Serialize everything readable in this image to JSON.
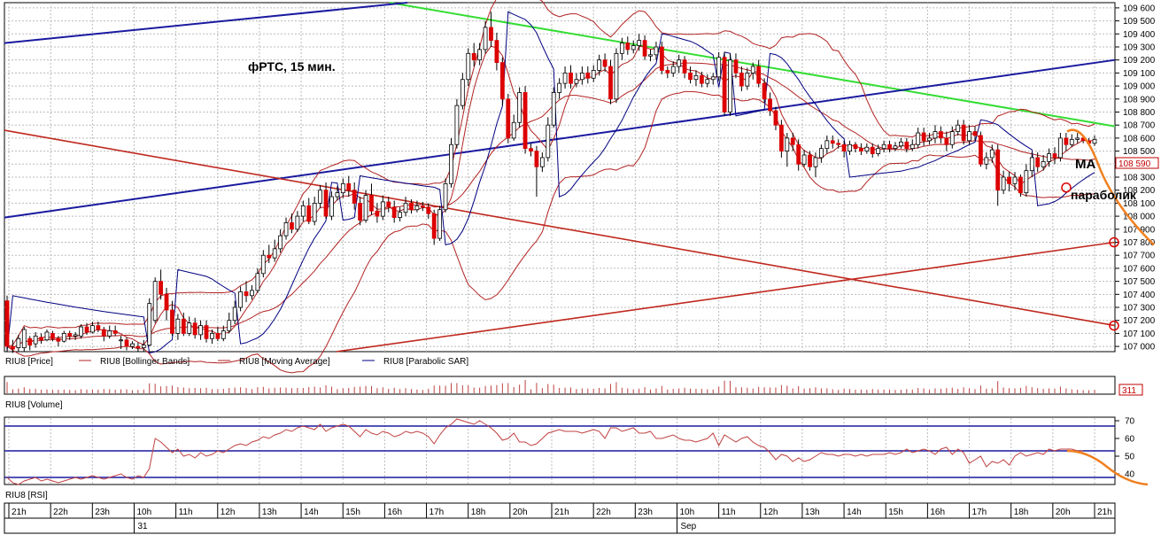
{
  "chart_data": {
    "type": "candlestick",
    "title": "фРТС, 15 мин.",
    "price_axis": {
      "ticks": [
        "109 600",
        "109 500",
        "109 400",
        "109 300",
        "109 200",
        "109 100",
        "109 000",
        "108 900",
        "108 800",
        "108 700",
        "108 600",
        "108 500",
        "108 400",
        "108 300",
        "108 200",
        "108 100",
        "108 000",
        "107 900",
        "107 800",
        "107 700",
        "107 600",
        "107 500",
        "107 400",
        "107 300",
        "107 200",
        "107 100",
        "107 000"
      ],
      "current_price_label": "108 590",
      "ylim": [
        106960,
        109640
      ]
    },
    "legend": [
      {
        "name": "RIU8 [Price]",
        "color": "#000000"
      },
      {
        "name": "RIU8 [Bollinger Bands]",
        "color": "#b22222"
      },
      {
        "name": "RIU8 [Moving Average]",
        "color": "#b22222"
      },
      {
        "name": "RIU8 [Parabolic SAR]",
        "color": "#000080"
      }
    ],
    "candles": [
      [
        107350,
        107000,
        107390,
        106960
      ],
      [
        107000,
        106980,
        107050,
        106950
      ],
      [
        106990,
        107060,
        107090,
        106960
      ],
      [
        106990,
        107130,
        107150,
        106960
      ],
      [
        107060,
        107010,
        107080,
        106970
      ],
      [
        107020,
        107080,
        107110,
        106990
      ],
      [
        107070,
        107050,
        107100,
        107020
      ],
      [
        107050,
        107110,
        107130,
        107040
      ],
      [
        107100,
        107060,
        107120,
        107040
      ],
      [
        107060,
        107040,
        107080,
        107000
      ],
      [
        107040,
        107100,
        107120,
        107030
      ],
      [
        107100,
        107080,
        107120,
        107050
      ],
      [
        107080,
        107090,
        107110,
        107050
      ],
      [
        107080,
        107150,
        107170,
        107060
      ],
      [
        107150,
        107110,
        107180,
        107090
      ],
      [
        107110,
        107160,
        107190,
        107100
      ],
      [
        107160,
        107130,
        107190,
        107110
      ],
      [
        107130,
        107080,
        107150,
        107040
      ],
      [
        107080,
        107120,
        107160,
        107060
      ],
      [
        107120,
        107100,
        107160,
        107080
      ],
      [
        107050,
        107050,
        107080,
        106980
      ],
      [
        107050,
        107000,
        107070,
        106970
      ],
      [
        107000,
        107020,
        107040,
        106980
      ],
      [
        107000,
        106990,
        107030,
        106960
      ],
      [
        106990,
        107010,
        107050,
        106960
      ],
      [
        107010,
        107330,
        107370,
        107000
      ],
      [
        107200,
        107500,
        107530,
        107180
      ],
      [
        107500,
        107400,
        107590,
        107360
      ],
      [
        107400,
        107280,
        107450,
        107200
      ],
      [
        107280,
        107100,
        107350,
        107080
      ],
      [
        107100,
        107210,
        107250,
        107050
      ],
      [
        107210,
        107100,
        107260,
        107080
      ],
      [
        107100,
        107180,
        107230,
        107080
      ],
      [
        107180,
        107090,
        107220,
        107060
      ],
      [
        107090,
        107160,
        107200,
        107050
      ],
      [
        107160,
        107060,
        107200,
        107030
      ],
      [
        107060,
        107100,
        107130,
        107020
      ],
      [
        107100,
        107060,
        107150,
        107040
      ],
      [
        107060,
        107120,
        107160,
        107040
      ],
      [
        107120,
        107200,
        107260,
        107100
      ],
      [
        107200,
        107300,
        107350,
        107170
      ],
      [
        107300,
        107420,
        107460,
        107270
      ],
      [
        107420,
        107390,
        107500,
        107340
      ],
      [
        107390,
        107430,
        107470,
        107360
      ],
      [
        107430,
        107560,
        107600,
        107410
      ],
      [
        107560,
        107700,
        107740,
        107530
      ],
      [
        107700,
        107680,
        107780,
        107640
      ],
      [
        107680,
        107750,
        107820,
        107650
      ],
      [
        107750,
        107850,
        107900,
        107720
      ],
      [
        107850,
        107950,
        107990,
        107820
      ],
      [
        107950,
        107900,
        108020,
        107870
      ],
      [
        107900,
        108000,
        108040,
        107880
      ],
      [
        108000,
        108080,
        108120,
        107960
      ],
      [
        108080,
        107960,
        108140,
        107940
      ],
      [
        107960,
        108100,
        108150,
        107930
      ],
      [
        108100,
        108200,
        108240,
        108060
      ],
      [
        108200,
        108000,
        108260,
        107980
      ],
      [
        108000,
        108150,
        108190,
        107970
      ],
      [
        108150,
        108180,
        108230,
        108120
      ],
      [
        108180,
        108250,
        108290,
        108140
      ],
      [
        108250,
        108200,
        108310,
        108150
      ],
      [
        108200,
        108100,
        108260,
        108050
      ],
      [
        108100,
        107970,
        108150,
        107930
      ],
      [
        107970,
        108160,
        108200,
        107950
      ],
      [
        108160,
        108040,
        108250,
        108010
      ],
      [
        108040,
        108000,
        108100,
        107950
      ],
      [
        108000,
        108110,
        108160,
        107970
      ],
      [
        108110,
        108070,
        108150,
        108030
      ],
      [
        108070,
        107990,
        108120,
        107950
      ],
      [
        107990,
        108030,
        108070,
        107960
      ],
      [
        108030,
        108100,
        108150,
        108000
      ],
      [
        108100,
        108050,
        108130,
        108020
      ],
      [
        108050,
        108080,
        108120,
        108030
      ],
      [
        108080,
        108070,
        108110,
        108040
      ],
      [
        108070,
        108020,
        108100,
        107980
      ],
      [
        108020,
        107830,
        108050,
        107780
      ],
      [
        107830,
        108050,
        108080,
        107810
      ],
      [
        108050,
        108250,
        108290,
        108030
      ],
      [
        108250,
        108550,
        108600,
        108220
      ],
      [
        108550,
        108850,
        108900,
        108520
      ],
      [
        108850,
        109050,
        109100,
        108820
      ],
      [
        109050,
        109250,
        109290,
        109000
      ],
      [
        109250,
        109200,
        109330,
        109150
      ],
      [
        109200,
        109280,
        109330,
        109160
      ],
      [
        109280,
        109450,
        109500,
        109250
      ],
      [
        109450,
        109350,
        109570,
        109300
      ],
      [
        109350,
        109180,
        109410,
        109120
      ],
      [
        109180,
        108900,
        109220,
        108850
      ],
      [
        108900,
        108600,
        108940,
        108560
      ],
      [
        108600,
        108720,
        108780,
        108580
      ],
      [
        108720,
        108950,
        108990,
        108680
      ],
      [
        108950,
        108520,
        109000,
        108480
      ],
      [
        108520,
        108500,
        108560,
        108460
      ],
      [
        108500,
        108380,
        108540,
        108150
      ],
      [
        108380,
        108450,
        108490,
        108340
      ],
      [
        108450,
        108700,
        108760,
        108420
      ],
      [
        108700,
        108950,
        108990,
        108680
      ],
      [
        108950,
        109020,
        109060,
        108900
      ],
      [
        109020,
        109100,
        109150,
        108980
      ],
      [
        109100,
        109020,
        109160,
        108980
      ],
      [
        109020,
        109050,
        109100,
        108990
      ],
      [
        109050,
        109100,
        109150,
        109010
      ],
      [
        109100,
        109060,
        109150,
        109020
      ],
      [
        109060,
        109120,
        109160,
        109030
      ],
      [
        109120,
        109200,
        109240,
        109080
      ],
      [
        109200,
        109150,
        109250,
        109110
      ],
      [
        109150,
        108900,
        109200,
        108860
      ],
      [
        108900,
        109250,
        109290,
        108870
      ],
      [
        109250,
        109330,
        109370,
        109200
      ],
      [
        109330,
        109280,
        109380,
        109240
      ],
      [
        109280,
        109310,
        109350,
        109250
      ],
      [
        109310,
        109350,
        109400,
        109270
      ],
      [
        109350,
        109230,
        109390,
        109200
      ],
      [
        109230,
        109240,
        109280,
        109190
      ],
      [
        109240,
        109300,
        109340,
        109200
      ],
      [
        109300,
        109120,
        109340,
        109090
      ],
      [
        109120,
        109100,
        109150,
        109060
      ],
      [
        109100,
        109150,
        109190,
        109070
      ],
      [
        109150,
        109200,
        109240,
        109100
      ],
      [
        109200,
        109100,
        109230,
        109060
      ],
      [
        109100,
        109050,
        109150,
        109020
      ],
      [
        109050,
        109080,
        109120,
        109000
      ],
      [
        109080,
        109020,
        109110,
        108990
      ],
      [
        109020,
        109050,
        109090,
        108990
      ],
      [
        109050,
        109070,
        109100,
        109010
      ],
      [
        109070,
        109220,
        109260,
        109040
      ],
      [
        109220,
        108800,
        109260,
        108770
      ],
      [
        108800,
        109200,
        109250,
        108770
      ],
      [
        109200,
        109100,
        109250,
        109060
      ],
      [
        109100,
        109000,
        109150,
        108960
      ],
      [
        109000,
        109100,
        109140,
        108970
      ],
      [
        109100,
        109150,
        109180,
        109050
      ],
      [
        109150,
        109020,
        109200,
        108990
      ],
      [
        109020,
        108900,
        109060,
        108870
      ],
      [
        108900,
        108810,
        108950,
        108770
      ],
      [
        108810,
        108700,
        108840,
        108660
      ],
      [
        108700,
        108500,
        108740,
        108450
      ],
      [
        108500,
        108600,
        108640,
        108380
      ],
      [
        108600,
        108550,
        108640,
        108500
      ],
      [
        108550,
        108400,
        108590,
        108350
      ],
      [
        108400,
        108470,
        108510,
        108380
      ],
      [
        108470,
        108380,
        108500,
        108350
      ],
      [
        108380,
        108450,
        108490,
        108300
      ],
      [
        108450,
        108520,
        108550,
        108410
      ],
      [
        108520,
        108580,
        108620,
        108480
      ],
      [
        108580,
        108560,
        108620,
        108520
      ],
      [
        108560,
        108550,
        108590,
        108520
      ],
      [
        108550,
        108500,
        108580,
        108450
      ],
      [
        108500,
        108550,
        108580,
        108470
      ],
      [
        108550,
        108520,
        108570,
        108490
      ],
      [
        108520,
        108500,
        108560,
        108470
      ],
      [
        108500,
        108530,
        108560,
        108480
      ],
      [
        108530,
        108480,
        108560,
        108450
      ],
      [
        108480,
        108520,
        108550,
        108460
      ],
      [
        108520,
        108550,
        108580,
        108490
      ],
      [
        108550,
        108520,
        108580,
        108490
      ],
      [
        108520,
        108540,
        108570,
        108500
      ],
      [
        108540,
        108570,
        108600,
        108520
      ],
      [
        108570,
        108520,
        108600,
        108490
      ],
      [
        108520,
        108550,
        108590,
        108500
      ],
      [
        108550,
        108640,
        108680,
        108520
      ],
      [
        108640,
        108580,
        108680,
        108540
      ],
      [
        108580,
        108600,
        108640,
        108550
      ],
      [
        108600,
        108650,
        108700,
        108560
      ],
      [
        108650,
        108600,
        108690,
        108560
      ],
      [
        108600,
        108550,
        108650,
        108500
      ],
      [
        108550,
        108650,
        108690,
        108520
      ],
      [
        108650,
        108700,
        108740,
        108620
      ],
      [
        108700,
        108580,
        108740,
        108550
      ],
      [
        108580,
        108650,
        108700,
        108550
      ],
      [
        108650,
        108620,
        108690,
        108580
      ],
      [
        108620,
        108400,
        108650,
        108380
      ],
      [
        108400,
        108450,
        108490,
        108360
      ],
      [
        108450,
        108510,
        108550,
        108410
      ],
      [
        108510,
        108200,
        108550,
        108080
      ],
      [
        108200,
        108300,
        108350,
        108170
      ],
      [
        108300,
        108250,
        108340,
        108190
      ],
      [
        108250,
        108300,
        108340,
        108200
      ],
      [
        108300,
        108180,
        108320,
        108150
      ],
      [
        108180,
        108350,
        108400,
        108150
      ],
      [
        108350,
        108450,
        108490,
        108300
      ],
      [
        108450,
        108380,
        108490,
        108340
      ],
      [
        108380,
        108420,
        108470,
        108350
      ],
      [
        108420,
        108480,
        108520,
        108380
      ],
      [
        108480,
        108450,
        108530,
        108400
      ],
      [
        108450,
        108600,
        108640,
        108420
      ],
      [
        108600,
        108550,
        108640,
        108500
      ],
      [
        108550,
        108590,
        108630,
        108530
      ],
      [
        108590,
        108600,
        108640,
        108560
      ],
      [
        108600,
        108580,
        108620,
        108560
      ],
      [
        108580,
        108560,
        108600,
        108540
      ],
      [
        108560,
        108590,
        108620,
        108540
      ]
    ],
    "volume_label": "311",
    "rsi": {
      "ticks": [
        "70",
        "60",
        "50",
        "40"
      ],
      "levels": [
        67,
        53,
        38
      ],
      "values": [
        38,
        35,
        34,
        36,
        37,
        38,
        36,
        37,
        36,
        35,
        36,
        37,
        38,
        37,
        38,
        39,
        38,
        37,
        38,
        39,
        40,
        38,
        37,
        39,
        38,
        43,
        60,
        58,
        55,
        52,
        54,
        50,
        51,
        49,
        52,
        50,
        51,
        53,
        52,
        54,
        56,
        57,
        56,
        58,
        59,
        61,
        60,
        62,
        63,
        65,
        64,
        66,
        67,
        66,
        65,
        68,
        64,
        66,
        67,
        68,
        67,
        64,
        61,
        65,
        63,
        62,
        64,
        63,
        61,
        62,
        64,
        63,
        64,
        63,
        61,
        57,
        62,
        66,
        68,
        71,
        70,
        69,
        68,
        70,
        68,
        66,
        63,
        59,
        60,
        63,
        58,
        58,
        56,
        57,
        60,
        63,
        64,
        65,
        64,
        64,
        64,
        63,
        64,
        65,
        64,
        60,
        66,
        66,
        64,
        65,
        66,
        63,
        63,
        64,
        60,
        60,
        61,
        62,
        60,
        59,
        59,
        58,
        59,
        60,
        63,
        56,
        62,
        60,
        58,
        60,
        61,
        58,
        56,
        55,
        52,
        48,
        51,
        50,
        47,
        49,
        47,
        48,
        50,
        52,
        51,
        51,
        50,
        51,
        51,
        50,
        51,
        50,
        51,
        51,
        51,
        52,
        51,
        52,
        54,
        52,
        53,
        54,
        53,
        51,
        54,
        55,
        51,
        54,
        52,
        46,
        48,
        50,
        44,
        47,
        46,
        48,
        45,
        50,
        52,
        50,
        51,
        52,
        51,
        54,
        53,
        54,
        54,
        54,
        53,
        53
      ]
    },
    "time_axis": [
      "21h",
      "22h",
      "23h",
      "10h",
      "11h",
      "12h",
      "13h",
      "14h",
      "15h",
      "16h",
      "17h",
      "18h",
      "20h",
      "21h",
      "22h",
      "23h",
      "10h",
      "11h",
      "12h",
      "13h",
      "14h",
      "15h",
      "16h",
      "17h",
      "18h",
      "20h",
      "21h"
    ],
    "date_labels": [
      "31",
      "Sep"
    ],
    "annotations": {
      "ma": "MA",
      "parabolic": "параболик"
    },
    "colors": {
      "candle_up": "#ffffff",
      "candle_down": "#dd0000",
      "bollinger": "#b22222",
      "sar": "#000080",
      "trend_green": "#33dd33",
      "trend_blue": "#1a1aa0",
      "trend_red": "#c0281e",
      "forecast": "#f08020",
      "rsi_line": "#c04040",
      "rsi_levels": "#1a1aa0"
    }
  }
}
